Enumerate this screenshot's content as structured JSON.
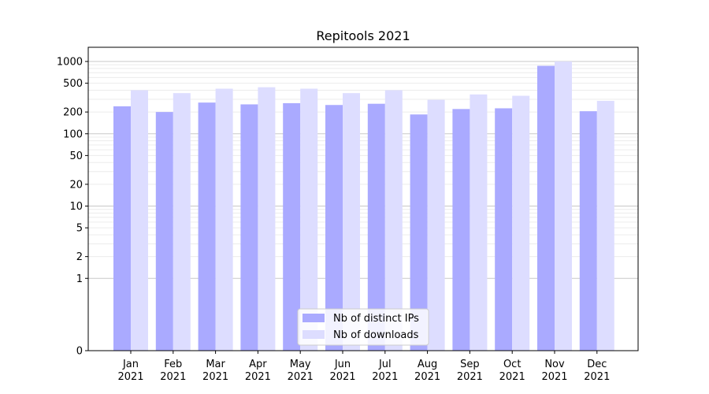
{
  "chart_data": {
    "type": "bar",
    "title": "Repitools 2021",
    "xlabel": "",
    "ylabel": "",
    "yscale": "symlog",
    "ylim": [
      0,
      1000
    ],
    "grid": true,
    "legend_placement": "lower-center",
    "categories": [
      {
        "month": "Jan",
        "year": "2021"
      },
      {
        "month": "Feb",
        "year": "2021"
      },
      {
        "month": "Mar",
        "year": "2021"
      },
      {
        "month": "Apr",
        "year": "2021"
      },
      {
        "month": "May",
        "year": "2021"
      },
      {
        "month": "Jun",
        "year": "2021"
      },
      {
        "month": "Jul",
        "year": "2021"
      },
      {
        "month": "Aug",
        "year": "2021"
      },
      {
        "month": "Sep",
        "year": "2021"
      },
      {
        "month": "Oct",
        "year": "2021"
      },
      {
        "month": "Nov",
        "year": "2021"
      },
      {
        "month": "Dec",
        "year": "2021"
      }
    ],
    "yticks": [
      {
        "value": 0,
        "label": "0"
      },
      {
        "value": 1,
        "label": "1"
      },
      {
        "value": 2,
        "label": "2"
      },
      {
        "value": 5,
        "label": "5"
      },
      {
        "value": 10,
        "label": "10"
      },
      {
        "value": 20,
        "label": "20"
      },
      {
        "value": 50,
        "label": "50"
      },
      {
        "value": 100,
        "label": "100"
      },
      {
        "value": 200,
        "label": "200"
      },
      {
        "value": 500,
        "label": "500"
      },
      {
        "value": 1000,
        "label": "1000"
      }
    ],
    "series": [
      {
        "name": "Nb of distinct IPs",
        "color": "#aaaaff",
        "values": [
          240,
          200,
          270,
          255,
          265,
          250,
          260,
          185,
          220,
          225,
          870,
          205
        ]
      },
      {
        "name": "Nb of downloads",
        "color": "#ddddff",
        "values": [
          400,
          365,
          420,
          440,
          420,
          365,
          400,
          295,
          350,
          335,
          1000,
          285
        ]
      }
    ]
  }
}
